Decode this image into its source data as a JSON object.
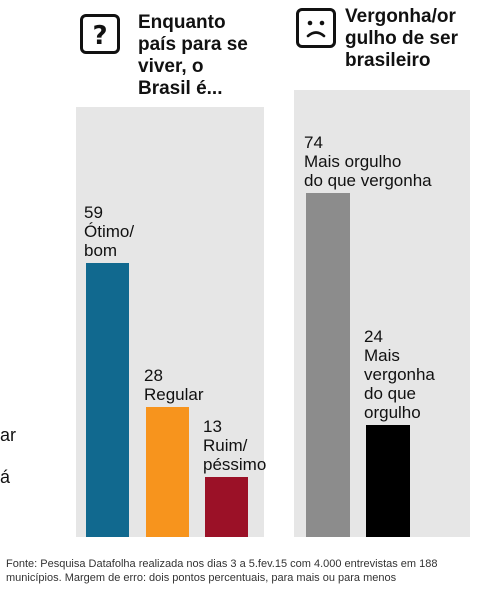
{
  "colors": {
    "otimo_bom": "#11698f",
    "regular": "#f7941d",
    "ruim_pessimo": "#9b1127",
    "mais_orgulho": "#8c8c8c",
    "mais_vergonha": "#000000",
    "panel_background": "#e6e6e6"
  },
  "left_fragment": {
    "line1": "ar",
    "line2": "á"
  },
  "panel1": {
    "title": "Enquanto\npaís para se\nviver, o\nBrasil é...",
    "icon": "question-mark-icon"
  },
  "panel2": {
    "title": "Vergonha/or\ngulho de ser\nbrasileiro",
    "icon": "sad-face-icon"
  },
  "chart_data": [
    {
      "type": "bar",
      "title": "Enquanto país para se viver, o Brasil é...",
      "categories": [
        "Ótimo/bom",
        "Regular",
        "Ruim/péssimo"
      ],
      "values": [
        59,
        28,
        13
      ],
      "labels": [
        "Ótimo/\nbom",
        "Regular",
        "Ruim/\npéssimo"
      ],
      "colors": [
        "#11698f",
        "#f7941d",
        "#9b1127"
      ],
      "unit": "%",
      "ylim": [
        0,
        100
      ],
      "grid": false
    },
    {
      "type": "bar",
      "title": "Vergonha/orgulho de ser brasileiro",
      "categories": [
        "Mais orgulho do que vergonha",
        "Mais vergonha do que orgulho"
      ],
      "values": [
        74,
        24
      ],
      "labels": [
        "Mais orgulho\ndo que vergonha",
        "Mais\nvergonha\ndo que\norgulho"
      ],
      "colors": [
        "#8c8c8c",
        "#000000"
      ],
      "unit": "%",
      "ylim": [
        0,
        100
      ],
      "grid": false
    }
  ],
  "source": "Fonte: Pesquisa Datafolha realizada nos dias 3 a 5.fev.15 com 4.000 entrevistas em 188 municípios. Margem de erro: dois pontos percentuais, para mais ou para menos"
}
